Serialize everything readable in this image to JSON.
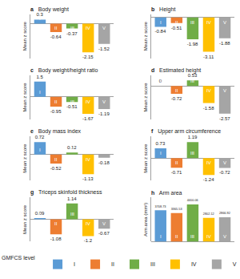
{
  "chart_data": [
    {
      "type": "bar",
      "panel": "a",
      "title": "Body weight",
      "y_label": "Mean z score",
      "categories": [
        "I",
        "II",
        "III",
        "IV",
        "V"
      ],
      "values": [
        0.3,
        -0.64,
        -0.37,
        -2.15,
        -1.52
      ],
      "colors": [
        "#5b9bd5",
        "#ed7d31",
        "#70ad47",
        "#ffc000",
        "#a5a5a5"
      ],
      "ylim": [
        -2.6,
        0.7
      ],
      "data_labels": true,
      "tick_labels": false,
      "grid": false
    },
    {
      "type": "bar",
      "panel": "b",
      "title": "Height",
      "y_label": "Mean z score",
      "categories": [
        "I",
        "II",
        "III",
        "IV",
        "V"
      ],
      "values": [
        -0.84,
        -0.51,
        -1.98,
        -3.11,
        -1.88
      ],
      "colors": [
        "#5b9bd5",
        "#ed7d31",
        "#70ad47",
        "#ffc000",
        "#a5a5a5"
      ],
      "ylim": [
        -3.7,
        0.3
      ],
      "data_labels": true,
      "tick_labels": false,
      "grid": false
    },
    {
      "type": "bar",
      "panel": "c",
      "title": "Body weight/height ratio",
      "y_label": "Mean z score",
      "categories": [
        "I",
        "II",
        "III",
        "IV",
        "V"
      ],
      "values": [
        1.5,
        -0.95,
        -0.51,
        -1.67,
        -1.19
      ],
      "colors": [
        "#5b9bd5",
        "#ed7d31",
        "#70ad47",
        "#ffc000",
        "#a5a5a5"
      ],
      "ylim": [
        -2.2,
        2.1
      ],
      "data_labels": true,
      "tick_labels": false,
      "grid": false
    },
    {
      "type": "bar",
      "panel": "d",
      "title": "Estimated height",
      "y_label": "Mean z score",
      "categories": [
        "I",
        "II",
        "III",
        "IV",
        "V"
      ],
      "values": [
        0,
        -0.72,
        0.53,
        -1.58,
        -2.57
      ],
      "colors": [
        "#5b9bd5",
        "#ed7d31",
        "#70ad47",
        "#ffc000",
        "#a5a5a5"
      ],
      "ylim": [
        -3.1,
        1.0
      ],
      "data_labels": true,
      "tick_labels": false,
      "grid": false
    },
    {
      "type": "bar",
      "panel": "e",
      "title": "Body mass index",
      "y_label": "Mean z score",
      "categories": [
        "I",
        "II",
        "III",
        "IV",
        "V"
      ],
      "values": [
        0.72,
        -0.52,
        0.12,
        -1.13,
        -0.18
      ],
      "colors": [
        "#5b9bd5",
        "#ed7d31",
        "#70ad47",
        "#ffc000",
        "#a5a5a5"
      ],
      "ylim": [
        -1.5,
        1.05
      ],
      "data_labels": true,
      "tick_labels": false,
      "grid": false
    },
    {
      "type": "bar",
      "panel": "f",
      "title": "Upper arm circumference",
      "y_label": "Mean z score",
      "categories": [
        "I",
        "II",
        "III",
        "IV",
        "V"
      ],
      "values": [
        0.73,
        -0.71,
        1.19,
        -1.24,
        -0.72
      ],
      "colors": [
        "#5b9bd5",
        "#ed7d31",
        "#70ad47",
        "#ffc000",
        "#a5a5a5"
      ],
      "ylim": [
        -1.65,
        1.6
      ],
      "data_labels": true,
      "tick_labels": false,
      "grid": false
    },
    {
      "type": "bar",
      "panel": "g",
      "title": "Triceps skinfold thickness",
      "y_label": "Mean z score",
      "categories": [
        "I",
        "II",
        "III",
        "IV",
        "V"
      ],
      "values": [
        0.09,
        -1.08,
        1.14,
        -1.2,
        -0.67
      ],
      "colors": [
        "#5b9bd5",
        "#ed7d31",
        "#70ad47",
        "#ffc000",
        "#a5a5a5"
      ],
      "ylim": [
        -1.6,
        1.55
      ],
      "data_labels": true,
      "tick_labels": false,
      "grid": false
    },
    {
      "type": "bar",
      "panel": "h",
      "title": "Arm area",
      "y_label": "Arm area (mm²)",
      "categories": [
        "I",
        "II",
        "III",
        "IV",
        "V"
      ],
      "values": [
        3708.73,
        3365.53,
        4400.06,
        2802.12,
        2866.92
      ],
      "colors": [
        "#5b9bd5",
        "#ed7d31",
        "#70ad47",
        "#ffc000",
        "#a5a5a5"
      ],
      "ylim": [
        0,
        5200
      ],
      "data_labels": true,
      "tick_labels": false,
      "grid": false
    }
  ],
  "legend_title": "GMFCS level",
  "legend": "bottom"
}
